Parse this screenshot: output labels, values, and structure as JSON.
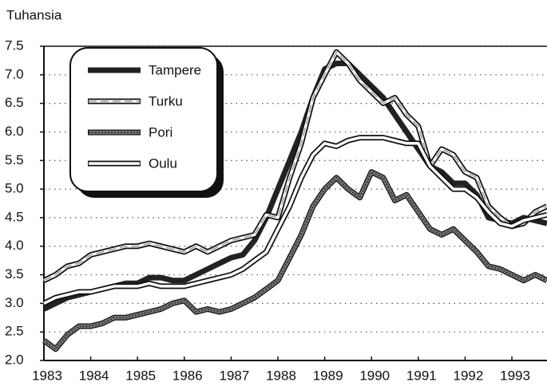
{
  "chart_data": {
    "type": "line",
    "y_axis_label": "Tuhansia",
    "x": [
      1983,
      1983.25,
      1983.5,
      1983.75,
      1984,
      1984.25,
      1984.5,
      1984.75,
      1985,
      1985.25,
      1985.5,
      1985.75,
      1986,
      1986.25,
      1986.5,
      1986.75,
      1987,
      1987.25,
      1987.5,
      1987.75,
      1988,
      1988.25,
      1988.5,
      1988.75,
      1989,
      1989.25,
      1989.5,
      1989.75,
      1990,
      1990.25,
      1990.5,
      1990.75,
      1991,
      1991.25,
      1991.5,
      1991.75,
      1992,
      1992.25,
      1992.5,
      1992.75,
      1993,
      1993.25,
      1993.5,
      1993.75
    ],
    "series": [
      {
        "name": "Tampere",
        "color": "#222222",
        "values": [
          2.9,
          3.0,
          3.1,
          3.15,
          3.2,
          3.25,
          3.3,
          3.35,
          3.35,
          3.45,
          3.45,
          3.4,
          3.4,
          3.5,
          3.6,
          3.7,
          3.8,
          3.85,
          4.1,
          4.5,
          5.0,
          5.5,
          6.0,
          6.6,
          7.1,
          7.2,
          7.2,
          7.0,
          6.8,
          6.6,
          6.3,
          6.0,
          5.7,
          5.4,
          5.3,
          5.1,
          5.1,
          4.9,
          4.5,
          4.45,
          4.4,
          4.5,
          4.45,
          4.4
        ]
      },
      {
        "name": "Turku",
        "color": "#ffffff",
        "values": [
          3.4,
          3.5,
          3.65,
          3.7,
          3.85,
          3.9,
          3.95,
          4.0,
          4.0,
          4.05,
          4.0,
          3.95,
          3.9,
          4.0,
          3.9,
          4.0,
          4.1,
          4.15,
          4.2,
          4.55,
          4.5,
          5.2,
          5.8,
          6.6,
          7.0,
          7.4,
          7.2,
          6.9,
          6.7,
          6.5,
          6.6,
          6.3,
          6.1,
          5.4,
          5.7,
          5.6,
          5.3,
          5.2,
          4.7,
          4.5,
          4.35,
          4.4,
          4.6,
          4.7
        ]
      },
      {
        "name": "Pori",
        "color": "#777777",
        "values": [
          2.35,
          2.2,
          2.45,
          2.6,
          2.6,
          2.65,
          2.75,
          2.75,
          2.8,
          2.85,
          2.9,
          3.0,
          3.05,
          2.85,
          2.9,
          2.85,
          2.9,
          3.0,
          3.1,
          3.25,
          3.4,
          3.8,
          4.2,
          4.7,
          5.0,
          5.2,
          5.0,
          4.85,
          5.3,
          5.2,
          4.8,
          4.9,
          4.6,
          4.3,
          4.2,
          4.3,
          4.1,
          3.9,
          3.65,
          3.6,
          3.5,
          3.4,
          3.5,
          3.4
        ]
      },
      {
        "name": "Oulu",
        "color": "#ffffff",
        "values": [
          3.0,
          3.1,
          3.15,
          3.2,
          3.2,
          3.25,
          3.3,
          3.3,
          3.3,
          3.35,
          3.3,
          3.3,
          3.3,
          3.35,
          3.4,
          3.45,
          3.5,
          3.6,
          3.75,
          3.9,
          4.3,
          4.7,
          5.2,
          5.6,
          5.8,
          5.75,
          5.85,
          5.9,
          5.9,
          5.9,
          5.85,
          5.8,
          5.8,
          5.4,
          5.2,
          5.0,
          5.0,
          4.85,
          4.6,
          4.4,
          4.35,
          4.45,
          4.5,
          4.55
        ]
      }
    ],
    "xlim": [
      1983,
      1993.75
    ],
    "xticks": [
      1983,
      1984,
      1985,
      1986,
      1987,
      1988,
      1989,
      1990,
      1991,
      1992,
      1993
    ],
    "ylim": [
      2,
      7.5
    ],
    "yticks": [
      {
        "value": 2,
        "label": "2.0"
      },
      2.5,
      {
        "value": 3,
        "label": "3.0"
      },
      3.5,
      {
        "value": 4,
        "label": "4.0"
      },
      4.5,
      {
        "value": 5,
        "label": "5.0"
      },
      5.5,
      {
        "value": 6,
        "label": "6.0"
      },
      6.5,
      {
        "value": 7,
        "label": "7.0"
      },
      7.5
    ],
    "grid": true,
    "legend": "upper left"
  }
}
